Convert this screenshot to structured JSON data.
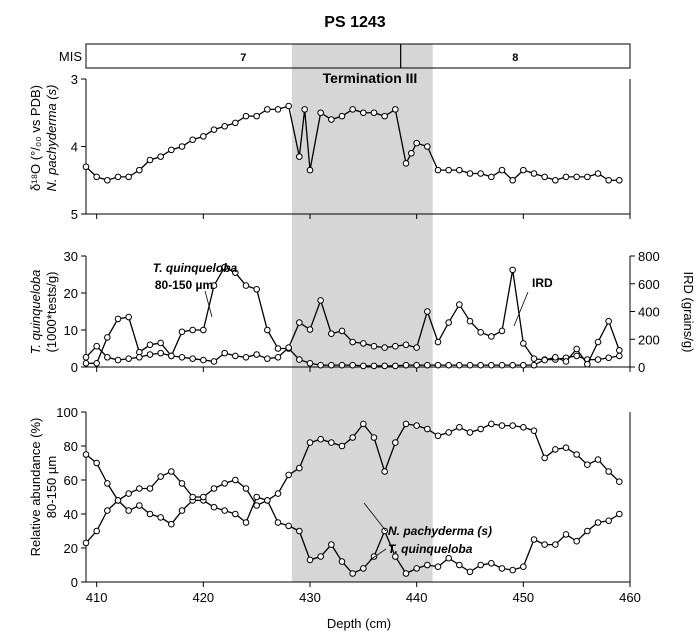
{
  "chart_data": [
    {
      "panel": "mis",
      "type": "table",
      "title": "PS 1243",
      "label": "MIS",
      "stages": [
        {
          "name": "7",
          "from": 409,
          "to": 438.5
        },
        {
          "name": "8",
          "from": 438.5,
          "to": 460
        }
      ]
    },
    {
      "panel": "d18o",
      "type": "line",
      "ylabel_line1": "δ¹⁸O (°/₀₀ vs PDB)",
      "ylabel_line2": "N. pachyderma (s)",
      "ylim": [
        5,
        3
      ],
      "yticks": [
        "3",
        "4",
        "5"
      ],
      "annotation": "Termination III",
      "series": [
        {
          "x": [
            409,
            410,
            411,
            412,
            413,
            414,
            415,
            416,
            417,
            418,
            419,
            420,
            421,
            422,
            423,
            424,
            425,
            426,
            427,
            428,
            429,
            429.5,
            430,
            431,
            432,
            433,
            434,
            435,
            436,
            437,
            438,
            439,
            439.5,
            440,
            441,
            442,
            443,
            444,
            445,
            446,
            447,
            448,
            449,
            450,
            451,
            452,
            453,
            454,
            455,
            456,
            457,
            458,
            459
          ],
          "values": [
            4.3,
            4.45,
            4.5,
            4.45,
            4.45,
            4.35,
            4.2,
            4.15,
            4.05,
            4.0,
            3.9,
            3.85,
            3.75,
            3.7,
            3.65,
            3.55,
            3.55,
            3.45,
            3.45,
            3.4,
            4.15,
            3.45,
            4.35,
            3.5,
            3.6,
            3.55,
            3.45,
            3.5,
            3.5,
            3.55,
            3.45,
            4.25,
            4.1,
            3.95,
            4.0,
            4.35,
            4.35,
            4.35,
            4.4,
            4.4,
            4.45,
            4.35,
            4.5,
            4.35,
            4.4,
            4.45,
            4.5,
            4.45,
            4.45,
            4.45,
            4.4,
            4.5,
            4.5
          ]
        }
      ]
    },
    {
      "panel": "quinq",
      "type": "line",
      "ylabel_line1": "T. quinqueloba",
      "ylabel_line2": "(1000*tests/g)",
      "ylabel_right": "IRD (grains/g)",
      "ylim": [
        0,
        30
      ],
      "ylim_right": [
        0,
        800
      ],
      "yticks": [
        "0",
        "10",
        "20",
        "30"
      ],
      "yticks_right": [
        "0",
        "200",
        "400",
        "600",
        "800"
      ],
      "series": [
        {
          "name": "T. quinqueloba 80-150 µm",
          "label_line1": "T. quinqueloba",
          "label_line2": "80-150 µm",
          "x": [
            409,
            410,
            411,
            412,
            413,
            414,
            415,
            416,
            417,
            418,
            419,
            420,
            421,
            422,
            423,
            424,
            425,
            426,
            427,
            428,
            429,
            430,
            431,
            432,
            433,
            434,
            435,
            436,
            437,
            438,
            439,
            440,
            441,
            442,
            443,
            444,
            445,
            446,
            447,
            448,
            449,
            450,
            451,
            452,
            453,
            454,
            455,
            456,
            457,
            458,
            459
          ],
          "values": [
            1,
            1,
            8,
            13,
            13.5,
            4,
            6,
            6.5,
            3,
            9.5,
            10,
            10,
            22,
            27,
            25.5,
            22,
            21,
            10,
            5,
            5,
            2,
            1,
            0.5,
            0.5,
            0.5,
            0.5,
            0.3,
            0.3,
            0.3,
            0.3,
            0.5,
            0.5,
            0.5,
            0.5,
            0.5,
            0.5,
            0.5,
            0.5,
            0.5,
            0.5,
            0.5,
            0.5,
            0.5,
            2,
            2,
            2.5,
            3,
            2,
            2,
            2.5,
            3
          ]
        },
        {
          "name": "IRD",
          "axis": "right",
          "x": [
            409,
            410,
            411,
            412,
            413,
            414,
            415,
            416,
            417,
            418,
            419,
            420,
            421,
            422,
            423,
            424,
            425,
            426,
            427,
            428,
            429,
            430,
            431,
            432,
            433,
            434,
            435,
            436,
            437,
            438,
            439,
            440,
            441,
            442,
            443,
            444,
            445,
            446,
            447,
            448,
            449,
            450,
            451,
            452,
            453,
            454,
            455,
            456,
            457,
            458,
            459
          ],
          "values": [
            70,
            150,
            70,
            50,
            60,
            70,
            90,
            100,
            80,
            70,
            60,
            50,
            40,
            100,
            80,
            70,
            90,
            60,
            70,
            140,
            320,
            270,
            480,
            240,
            260,
            180,
            170,
            150,
            140,
            150,
            160,
            140,
            400,
            180,
            320,
            450,
            330,
            250,
            220,
            260,
            700,
            170,
            60,
            50,
            70,
            40,
            130,
            20,
            180,
            330,
            120
          ]
        }
      ]
    },
    {
      "panel": "rel",
      "type": "line",
      "ylabel_line1": "Relative abundance (%)",
      "ylabel_line2": "80-150 µm",
      "xlabel": "Depth (cm)",
      "ylim": [
        0,
        100
      ],
      "xlim": [
        409,
        460
      ],
      "yticks": [
        "0",
        "20",
        "40",
        "60",
        "80",
        "100"
      ],
      "xticks": [
        "410",
        "420",
        "430",
        "440",
        "450",
        "460"
      ],
      "series": [
        {
          "name": "N. pachyderma (s)",
          "x": [
            409,
            410,
            411,
            412,
            413,
            414,
            415,
            416,
            417,
            418,
            419,
            420,
            421,
            422,
            423,
            424,
            425,
            426,
            427,
            428,
            429,
            430,
            431,
            432,
            433,
            434,
            435,
            436,
            437,
            438,
            439,
            440,
            441,
            442,
            443,
            444,
            445,
            446,
            447,
            448,
            449,
            450,
            451,
            452,
            453,
            454,
            455,
            456,
            457,
            458,
            459
          ],
          "values": [
            75,
            70,
            58,
            48,
            42,
            45,
            40,
            38,
            34,
            42,
            48,
            48,
            44,
            42,
            40,
            35,
            50,
            48,
            52,
            63,
            67,
            82,
            84,
            82,
            80,
            85,
            93,
            85,
            65,
            82,
            93,
            92,
            90,
            86,
            88,
            91,
            88,
            90,
            93,
            92,
            92,
            91,
            89,
            73,
            78,
            79,
            75,
            69,
            72,
            65,
            59
          ]
        },
        {
          "name": "T. quinqueloba",
          "x": [
            409,
            410,
            411,
            412,
            413,
            414,
            415,
            416,
            417,
            418,
            419,
            420,
            421,
            422,
            423,
            424,
            425,
            426,
            427,
            428,
            429,
            430,
            431,
            432,
            433,
            434,
            435,
            436,
            437,
            438,
            439,
            440,
            441,
            442,
            443,
            444,
            445,
            446,
            447,
            448,
            449,
            450,
            451,
            452,
            453,
            454,
            455,
            456,
            457,
            458,
            459
          ],
          "values": [
            23,
            30,
            42,
            48,
            52,
            55,
            55,
            62,
            65,
            58,
            50,
            50,
            55,
            58,
            60,
            55,
            45,
            48,
            35,
            33,
            30,
            13,
            15,
            22,
            12,
            5,
            8,
            15,
            30,
            15,
            5,
            8,
            10,
            9,
            14,
            10,
            6,
            10,
            11,
            8,
            7,
            9,
            25,
            22,
            22,
            28,
            24,
            30,
            35,
            36,
            40
          ]
        }
      ]
    }
  ]
}
